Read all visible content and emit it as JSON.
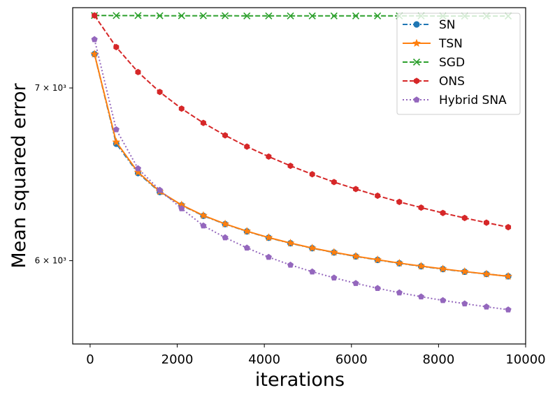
{
  "chart_data": {
    "type": "line",
    "title": "",
    "xlabel": "iterations",
    "ylabel": "Mean squared error",
    "y_scale": "log",
    "xlim": [
      -400,
      10000
    ],
    "ylim": [
      5570,
      7520
    ],
    "x_ticks": [
      0,
      2000,
      4000,
      6000,
      8000,
      10000
    ],
    "x_tick_labels": [
      "0",
      "2000",
      "4000",
      "6000",
      "8000",
      "10000"
    ],
    "y_ticks": [
      6000,
      7000
    ],
    "y_tick_labels": [
      "6 × 10³",
      "7 × 10³"
    ],
    "grid": false,
    "legend_position": "top-right",
    "x": [
      100,
      600,
      1100,
      1600,
      2100,
      2600,
      3100,
      3600,
      4100,
      4600,
      5100,
      5600,
      6100,
      6600,
      7100,
      7600,
      8100,
      8600,
      9100,
      9600
    ],
    "series": [
      {
        "name": "SN",
        "color": "#1f77b4",
        "linestyle": "dashdot",
        "marker": "circle",
        "values": [
          7215,
          6660,
          6488,
          6379,
          6304,
          6245,
          6199,
          6159,
          6124,
          6094,
          6067,
          6044,
          6023,
          6004,
          5986,
          5970,
          5955,
          5941,
          5929,
          5917
        ]
      },
      {
        "name": "TSN",
        "color": "#ff7f0e",
        "linestyle": "solid",
        "marker": "star",
        "values": [
          7215,
          6670,
          6493,
          6382,
          6306,
          6247,
          6200,
          6160,
          6125,
          6095,
          6068,
          6045,
          6024,
          6005,
          5987,
          5971,
          5956,
          5942,
          5929,
          5917
        ]
      },
      {
        "name": "SGD",
        "color": "#2ca02c",
        "linestyle": "dashed",
        "marker": "x",
        "values": [
          7468,
          7467,
          7467,
          7466,
          7466,
          7466,
          7466,
          7465,
          7465,
          7465,
          7465,
          7465,
          7465,
          7465,
          7465,
          7465,
          7464,
          7464,
          7464,
          7464
        ]
      },
      {
        "name": "ONS",
        "color": "#d62728",
        "linestyle": "dashed",
        "marker": "hexagon",
        "values": [
          7468,
          7260,
          7100,
          6975,
          6872,
          6785,
          6710,
          6643,
          6584,
          6530,
          6481,
          6436,
          6396,
          6358,
          6323,
          6291,
          6261,
          6233,
          6207,
          6182
        ]
      },
      {
        "name": "Hybrid SNA",
        "color": "#9467bd",
        "linestyle": "dotted",
        "marker": "pentagon",
        "values": [
          7310,
          6745,
          6514,
          6390,
          6286,
          6190,
          6125,
          6069,
          6019,
          5977,
          5941,
          5909,
          5880,
          5854,
          5831,
          5810,
          5791,
          5774,
          5758,
          5743
        ]
      }
    ]
  }
}
